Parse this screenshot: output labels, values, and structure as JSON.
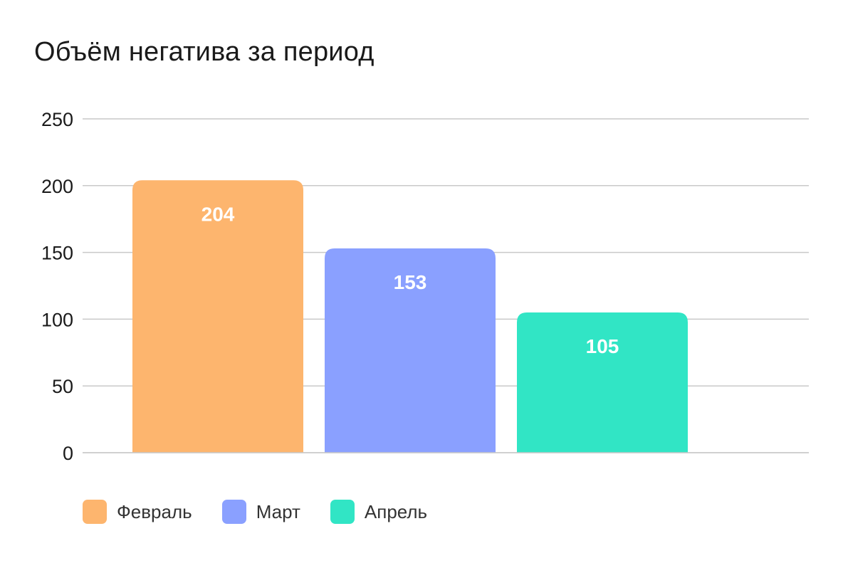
{
  "chart_data": {
    "type": "bar",
    "title": "Объём негатива за период",
    "categories": [
      "Февраль",
      "Март",
      "Апрель"
    ],
    "values": [
      204,
      153,
      105
    ],
    "colors": [
      "#FDB56E",
      "#8AA0FF",
      "#31E5C5"
    ],
    "ylim": [
      0,
      250
    ],
    "yticks": [
      0,
      50,
      100,
      150,
      200,
      250
    ],
    "grid": true,
    "legend_position": "bottom-left",
    "data_labels": true
  }
}
